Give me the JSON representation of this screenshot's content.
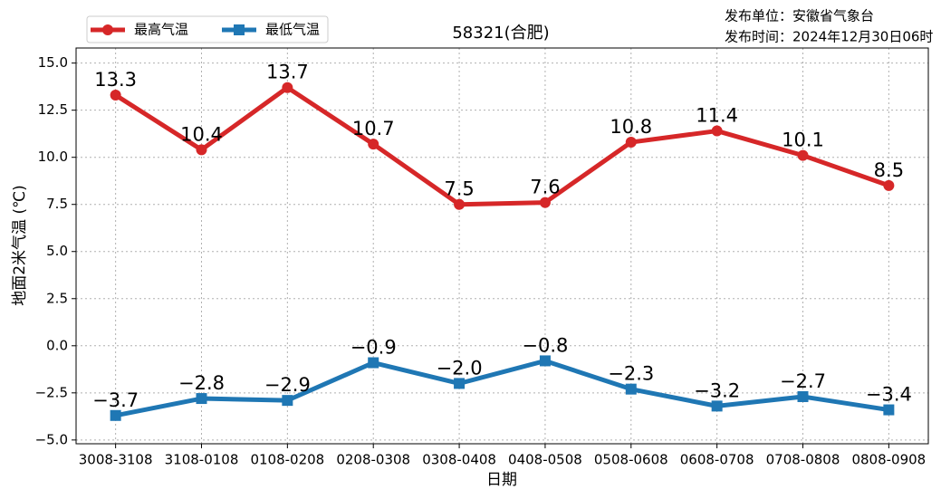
{
  "chart_data": {
    "type": "line",
    "title": "58321(合肥)",
    "publisher": "发布单位：安徽省气象台",
    "issue_time": "发布时间：2024年12月30日06时",
    "x_label": "日期",
    "y_label": "地面2米气温 (℃)",
    "categories": [
      "3008-3108",
      "3108-0108",
      "0108-0208",
      "0208-0308",
      "0308-0408",
      "0408-0508",
      "0508-0608",
      "0608-0708",
      "0708-0808",
      "0808-0908"
    ],
    "series": [
      {
        "name": "最高气温",
        "color": "#d62728",
        "marker": "circle",
        "values": [
          13.3,
          10.4,
          13.7,
          10.7,
          7.5,
          7.6,
          10.8,
          11.4,
          10.1,
          8.5
        ]
      },
      {
        "name": "最低气温",
        "color": "#1f77b4",
        "marker": "square",
        "values": [
          -3.7,
          -2.8,
          -2.9,
          -0.9,
          -2.0,
          -0.8,
          -2.3,
          -3.2,
          -2.7,
          -3.4
        ],
        "value_labels": [
          "−3.7",
          "−2.8",
          "−2.9",
          "−0.9",
          "−2.0",
          "−0.8",
          "−2.3",
          "−3.2",
          "−2.7",
          "−3.4"
        ]
      }
    ],
    "ylim": [
      -5.2,
      15.8
    ],
    "yticks": [
      {
        "value": -5,
        "label": "−5.0"
      },
      {
        "value": -2.5,
        "label": "−2.5"
      },
      {
        "value": 0,
        "label": "0.0"
      },
      {
        "value": 2.5,
        "label": "2.5"
      },
      {
        "value": 5,
        "label": "5.0"
      },
      {
        "value": 7.5,
        "label": "7.5"
      },
      {
        "value": 10,
        "label": "10.0"
      },
      {
        "value": 12.5,
        "label": "12.5"
      },
      {
        "value": 15,
        "label": "15.0"
      }
    ],
    "grid": true,
    "legend": "upper left"
  }
}
